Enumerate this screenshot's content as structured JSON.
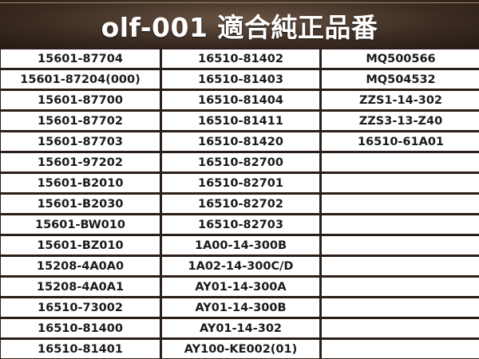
{
  "header": {
    "title": "olf-001 適合純正品番"
  },
  "table": {
    "rows": [
      [
        "15601-87704",
        "16510-81402",
        "MQ500566"
      ],
      [
        "15601-87204(000)",
        "16510-81403",
        "MQ504532"
      ],
      [
        "15601-87700",
        "16510-81404",
        "ZZS1-14-302"
      ],
      [
        "15601-87702",
        "16510-81411",
        "ZZS3-13-Z40"
      ],
      [
        "15601-87703",
        "16510-81420",
        "16510-61A01"
      ],
      [
        "15601-97202",
        "16510-82700",
        ""
      ],
      [
        "15601-B2010",
        "16510-82701",
        ""
      ],
      [
        "15601-B2030",
        "16510-82702",
        ""
      ],
      [
        "15601-BW010",
        "16510-82703",
        ""
      ],
      [
        "15601-BZ010",
        "1A00-14-300B",
        ""
      ],
      [
        "15208-4A0A0",
        "1A02-14-300C/D",
        ""
      ],
      [
        "15208-4A0A1",
        "AY01-14-300A",
        ""
      ],
      [
        "16510-73002",
        "AY01-14-300B",
        ""
      ],
      [
        "16510-81400",
        "AY01-14-302",
        ""
      ],
      [
        "16510-81401",
        "AY100-KE002(01)",
        ""
      ]
    ]
  }
}
